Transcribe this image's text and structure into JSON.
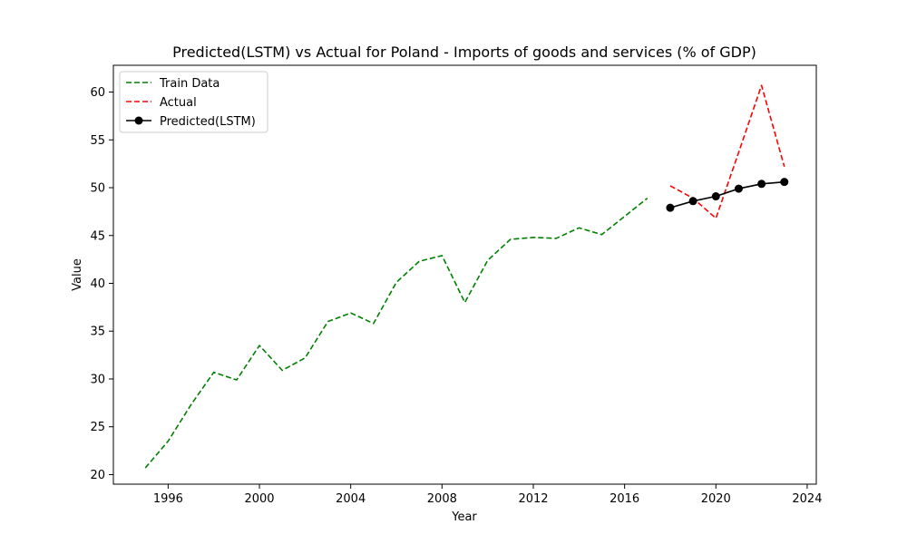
{
  "chart_data": {
    "type": "line",
    "title": "Predicted(LSTM) vs Actual for Poland - Imports of goods and services (% of GDP)",
    "xlabel": "Year",
    "ylabel": "Value",
    "xlim": [
      1993.6,
      2024.4
    ],
    "ylim": [
      19.0,
      62.8
    ],
    "xticks": [
      1996,
      2000,
      2004,
      2008,
      2012,
      2016,
      2020,
      2024
    ],
    "yticks": [
      20,
      25,
      30,
      35,
      40,
      45,
      50,
      55,
      60
    ],
    "grid": false,
    "legend": "top-left",
    "series": [
      {
        "name": "Train Data",
        "style": "dashed",
        "color": "#008000",
        "x": [
          1995,
          1996,
          1997,
          1998,
          1999,
          2000,
          2001,
          2002,
          2003,
          2004,
          2005,
          2006,
          2007,
          2008,
          2009,
          2010,
          2011,
          2012,
          2013,
          2014,
          2015,
          2016,
          2017
        ],
        "y": [
          20.7,
          23.5,
          27.3,
          30.7,
          29.9,
          33.5,
          30.9,
          32.2,
          36.0,
          36.9,
          35.8,
          40.1,
          42.3,
          42.9,
          38.0,
          42.4,
          44.6,
          44.8,
          44.7,
          45.8,
          45.1,
          47.0,
          48.9
        ]
      },
      {
        "name": "Actual",
        "style": "dashed",
        "color": "#ff0000",
        "x": [
          2018,
          2019,
          2020,
          2021,
          2022,
          2023
        ],
        "y": [
          50.2,
          48.9,
          46.8,
          53.7,
          60.7,
          52.2
        ]
      },
      {
        "name": "Predicted(LSTM)",
        "style": "solid-markers",
        "color": "#000000",
        "x": [
          2018,
          2019,
          2020,
          2021,
          2022,
          2023
        ],
        "y": [
          47.9,
          48.6,
          49.1,
          49.9,
          50.4,
          50.6
        ]
      }
    ]
  }
}
